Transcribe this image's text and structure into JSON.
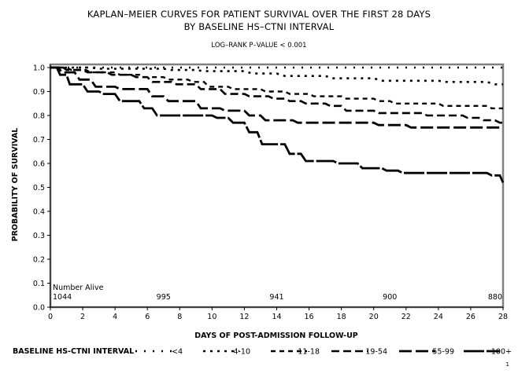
{
  "page": {
    "page_number": "1"
  },
  "chart_data": {
    "type": "line",
    "title_lines": [
      "KAPLAN–MEIER CURVES FOR PATIENT SURVIVAL OVER THE FIRST 28 DAYS",
      "BY BASELINE HS–CTNI INTERVAL"
    ],
    "subtitle": "LOG–RANK P–VALUE < 0.001",
    "xlabel": "DAYS OF POST-ADMISSION FOLLOW-UP",
    "ylabel": "PROBABILITY OF SURVIVAL",
    "xlim": [
      0,
      28
    ],
    "ylim": [
      0,
      1
    ],
    "x_ticks": [
      0,
      2,
      4,
      6,
      8,
      10,
      12,
      14,
      16,
      18,
      20,
      22,
      24,
      26,
      28
    ],
    "x_tick_labels": [
      "0",
      "2",
      "4",
      "6",
      "8",
      "10",
      "12",
      "14",
      "16",
      "18",
      "20",
      "22",
      "24",
      "26",
      "28"
    ],
    "y_ticks": [
      0,
      0.1,
      0.2,
      0.3,
      0.4,
      0.5,
      0.6,
      0.7,
      0.8,
      0.9,
      1.0
    ],
    "y_tick_labels": [
      "0.0",
      "0.1",
      "0.2",
      "0.3",
      "0.4",
      "0.5",
      "0.6",
      "0.7",
      "0.8",
      "0.9",
      "1.0"
    ],
    "grid": false,
    "at_risk": {
      "header": "Number Alive",
      "entries": [
        {
          "x": 0,
          "label": "1044"
        },
        {
          "x": 7,
          "label": "995"
        },
        {
          "x": 14,
          "label": "941"
        },
        {
          "x": 21,
          "label": "900"
        },
        {
          "x": 28,
          "label": "880"
        }
      ]
    },
    "legend": {
      "title": "BASELINE HS-CTNI INTERVAL",
      "placement": "bottom"
    },
    "series": [
      {
        "name": "<4",
        "style": "dotted",
        "points": [
          [
            0,
            1.0
          ],
          [
            28,
            1.0
          ]
        ]
      },
      {
        "name": "4-10",
        "style": "dots",
        "points": [
          [
            0,
            1.0
          ],
          [
            2.5,
            1.0
          ],
          [
            3,
            0.995
          ],
          [
            7,
            0.995
          ],
          [
            7.5,
            0.99
          ],
          [
            9,
            0.99
          ],
          [
            9.5,
            0.985
          ],
          [
            12,
            0.985
          ],
          [
            12.5,
            0.975
          ],
          [
            14,
            0.975
          ],
          [
            14.5,
            0.965
          ],
          [
            17,
            0.965
          ],
          [
            17.5,
            0.955
          ],
          [
            20,
            0.955
          ],
          [
            20.5,
            0.945
          ],
          [
            24,
            0.945
          ],
          [
            24.5,
            0.94
          ],
          [
            27,
            0.94
          ],
          [
            27.5,
            0.93
          ],
          [
            28,
            0.93
          ]
        ]
      },
      {
        "name": "11-18",
        "style": "short-dash",
        "points": [
          [
            0,
            1.0
          ],
          [
            1,
            1.0
          ],
          [
            1.3,
            0.99
          ],
          [
            2.2,
            0.99
          ],
          [
            2.5,
            0.98
          ],
          [
            4,
            0.98
          ],
          [
            4.3,
            0.97
          ],
          [
            5.5,
            0.97
          ],
          [
            5.8,
            0.96
          ],
          [
            7,
            0.96
          ],
          [
            7.3,
            0.95
          ],
          [
            8.5,
            0.95
          ],
          [
            8.8,
            0.94
          ],
          [
            9.5,
            0.94
          ],
          [
            9.8,
            0.92
          ],
          [
            11,
            0.92
          ],
          [
            11.3,
            0.91
          ],
          [
            13,
            0.91
          ],
          [
            13.3,
            0.9
          ],
          [
            14.5,
            0.9
          ],
          [
            14.8,
            0.89
          ],
          [
            16,
            0.89
          ],
          [
            16.3,
            0.88
          ],
          [
            18,
            0.88
          ],
          [
            18.3,
            0.87
          ],
          [
            20,
            0.87
          ],
          [
            20.3,
            0.86
          ],
          [
            21,
            0.86
          ],
          [
            21.3,
            0.85
          ],
          [
            24,
            0.85
          ],
          [
            24.3,
            0.84
          ],
          [
            27,
            0.84
          ],
          [
            27.3,
            0.83
          ],
          [
            28,
            0.83
          ]
        ]
      },
      {
        "name": "19-54",
        "style": "medium-dash",
        "points": [
          [
            0,
            1.0
          ],
          [
            0.8,
            1.0
          ],
          [
            1,
            0.99
          ],
          [
            2,
            0.99
          ],
          [
            2.3,
            0.98
          ],
          [
            3.5,
            0.98
          ],
          [
            3.8,
            0.97
          ],
          [
            5,
            0.97
          ],
          [
            5.3,
            0.96
          ],
          [
            6,
            0.96
          ],
          [
            6.3,
            0.94
          ],
          [
            7.5,
            0.94
          ],
          [
            7.8,
            0.93
          ],
          [
            9,
            0.93
          ],
          [
            9.3,
            0.91
          ],
          [
            10.5,
            0.91
          ],
          [
            10.8,
            0.89
          ],
          [
            12,
            0.89
          ],
          [
            12.3,
            0.88
          ],
          [
            13.5,
            0.88
          ],
          [
            13.8,
            0.87
          ],
          [
            14.5,
            0.87
          ],
          [
            14.8,
            0.86
          ],
          [
            15.5,
            0.86
          ],
          [
            15.8,
            0.85
          ],
          [
            17,
            0.85
          ],
          [
            17.3,
            0.84
          ],
          [
            18,
            0.84
          ],
          [
            18.3,
            0.82
          ],
          [
            20,
            0.82
          ],
          [
            20.3,
            0.81
          ],
          [
            23,
            0.81
          ],
          [
            23.3,
            0.8
          ],
          [
            25.5,
            0.8
          ],
          [
            25.8,
            0.79
          ],
          [
            26.5,
            0.79
          ],
          [
            26.8,
            0.78
          ],
          [
            27.5,
            0.78
          ],
          [
            27.8,
            0.77
          ],
          [
            28,
            0.77
          ]
        ]
      },
      {
        "name": "55-99",
        "style": "long-dash",
        "points": [
          [
            0,
            1.0
          ],
          [
            0.5,
            1.0
          ],
          [
            0.7,
            0.98
          ],
          [
            1.5,
            0.98
          ],
          [
            1.8,
            0.95
          ],
          [
            2.5,
            0.95
          ],
          [
            2.8,
            0.92
          ],
          [
            4,
            0.92
          ],
          [
            4.3,
            0.91
          ],
          [
            6,
            0.91
          ],
          [
            6.3,
            0.88
          ],
          [
            7,
            0.88
          ],
          [
            7.3,
            0.86
          ],
          [
            9,
            0.86
          ],
          [
            9.3,
            0.83
          ],
          [
            10.5,
            0.83
          ],
          [
            10.8,
            0.82
          ],
          [
            12,
            0.82
          ],
          [
            12.3,
            0.8
          ],
          [
            13,
            0.8
          ],
          [
            13.3,
            0.78
          ],
          [
            15,
            0.78
          ],
          [
            15.3,
            0.77
          ],
          [
            20,
            0.77
          ],
          [
            20.3,
            0.76
          ],
          [
            22,
            0.76
          ],
          [
            22.3,
            0.75
          ],
          [
            28,
            0.75
          ]
        ]
      },
      {
        "name": "100+",
        "style": "solid-dash",
        "points": [
          [
            0,
            1.0
          ],
          [
            0.4,
            1.0
          ],
          [
            0.6,
            0.97
          ],
          [
            1,
            0.97
          ],
          [
            1.2,
            0.93
          ],
          [
            2,
            0.93
          ],
          [
            2.3,
            0.9
          ],
          [
            3,
            0.9
          ],
          [
            3.3,
            0.89
          ],
          [
            4,
            0.89
          ],
          [
            4.3,
            0.86
          ],
          [
            5.5,
            0.86
          ],
          [
            5.8,
            0.83
          ],
          [
            6.3,
            0.83
          ],
          [
            6.6,
            0.8
          ],
          [
            10,
            0.8
          ],
          [
            10.3,
            0.79
          ],
          [
            11,
            0.79
          ],
          [
            11.3,
            0.77
          ],
          [
            12,
            0.77
          ],
          [
            12.3,
            0.73
          ],
          [
            12.8,
            0.73
          ],
          [
            13.1,
            0.68
          ],
          [
            14.5,
            0.68
          ],
          [
            14.8,
            0.64
          ],
          [
            15.5,
            0.64
          ],
          [
            15.8,
            0.61
          ],
          [
            17.5,
            0.61
          ],
          [
            17.8,
            0.6
          ],
          [
            19,
            0.6
          ],
          [
            19.3,
            0.58
          ],
          [
            20.5,
            0.58
          ],
          [
            20.8,
            0.57
          ],
          [
            21.5,
            0.57
          ],
          [
            21.8,
            0.56
          ],
          [
            27,
            0.56
          ],
          [
            27.3,
            0.55
          ],
          [
            27.8,
            0.55
          ],
          [
            28,
            0.52
          ]
        ]
      }
    ]
  }
}
